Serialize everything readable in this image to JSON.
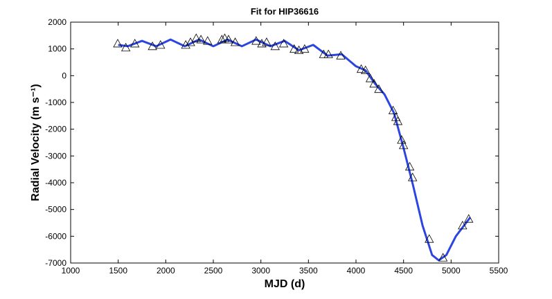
{
  "chart_data": {
    "type": "scatter_fit",
    "title": "Fit for HIP36616",
    "x_label": "MJD (d)",
    "y_label": "Radial Velocity (m s⁻¹)",
    "xlim": [
      1000,
      5500
    ],
    "xticks": [
      1000,
      1500,
      2000,
      2500,
      3000,
      3500,
      4000,
      4500,
      5000,
      5500
    ],
    "ylim": [
      -7000,
      2000
    ],
    "yticks": [
      -7000,
      -6000,
      -5000,
      -4000,
      -3000,
      -2000,
      -1000,
      0,
      1000,
      2000
    ],
    "points": {
      "color": "#000000",
      "x": [
        1495,
        1580,
        1675,
        1860,
        1945,
        2210,
        2260,
        2320,
        2370,
        2440,
        2590,
        2620,
        2660,
        2730,
        2950,
        3010,
        3060,
        3150,
        3240,
        3350,
        3400,
        3460,
        3660,
        3710,
        3840,
        4055,
        4100,
        4150,
        4190,
        4240,
        4390,
        4420,
        4440,
        4480,
        4500,
        4565,
        4595,
        4770,
        4915,
        5120,
        5185
      ],
      "values": [
        1200,
        1050,
        1200,
        1100,
        1150,
        1150,
        1250,
        1400,
        1350,
        1300,
        1350,
        1400,
        1350,
        1250,
        1300,
        1200,
        1250,
        1100,
        1200,
        1000,
        950,
        1000,
        800,
        800,
        750,
        250,
        200,
        -100,
        -300,
        -500,
        -1300,
        -1550,
        -1700,
        -2400,
        -2600,
        -3400,
        -3800,
        -6100,
        -6800,
        -5600,
        -5350
      ]
    },
    "fit": {
      "color": "#2b45e0",
      "x": [
        1500,
        1600,
        1750,
        1900,
        2050,
        2200,
        2350,
        2500,
        2650,
        2800,
        2950,
        3100,
        3250,
        3400,
        3550,
        3700,
        3850,
        4000,
        4100,
        4200,
        4300,
        4400,
        4500,
        4600,
        4700,
        4800,
        4870,
        4950,
        5050,
        5200
      ],
      "values": [
        1150,
        1100,
        1300,
        1100,
        1350,
        1100,
        1350,
        1100,
        1350,
        1100,
        1350,
        1100,
        1300,
        950,
        1150,
        750,
        800,
        350,
        200,
        -300,
        -700,
        -1400,
        -2700,
        -4100,
        -5600,
        -6700,
        -6900,
        -6700,
        -6000,
        -5300
      ]
    }
  }
}
